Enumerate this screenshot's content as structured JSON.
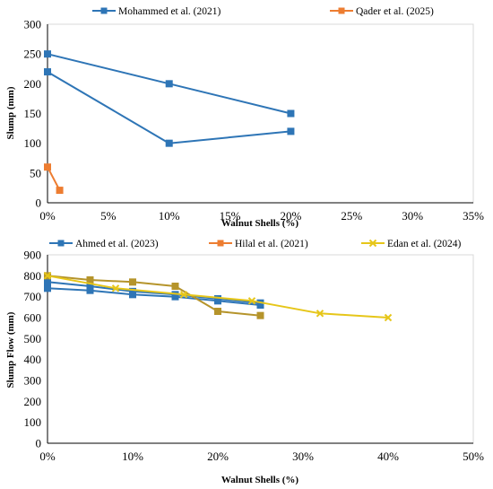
{
  "chart_data": [
    {
      "type": "line",
      "xlabel": "Walnut Shells (%)",
      "ylabel": "Slump (mm)",
      "xlim": [
        0,
        35
      ],
      "ylim": [
        0,
        300
      ],
      "x_ticks": [
        "0%",
        "5%",
        "10%",
        "15%",
        "20%",
        "25%",
        "30%",
        "35%"
      ],
      "y_ticks": [
        "0",
        "50",
        "100",
        "150",
        "200",
        "250",
        "300"
      ],
      "grid": false,
      "legend_position": "top",
      "series": [
        {
          "name": "Mohammed et al. (2021)",
          "color": "#2e75b6",
          "marker": "square",
          "lines": [
            {
              "x": [
                0,
                10,
                20
              ],
              "y": [
                250,
                200,
                150
              ]
            },
            {
              "x": [
                0,
                10,
                20
              ],
              "y": [
                220,
                100,
                120
              ]
            }
          ]
        },
        {
          "name": "Qader et al. (2025)",
          "color": "#ed7d31",
          "marker": "square",
          "lines": [
            {
              "x": [
                0,
                1
              ],
              "y": [
                60,
                21
              ]
            }
          ]
        }
      ]
    },
    {
      "type": "line",
      "xlabel": "Walnut Shells (%)",
      "ylabel": "Slump Flow (mm)",
      "xlim": [
        0,
        50
      ],
      "ylim": [
        0,
        900
      ],
      "x_ticks": [
        "0%",
        "10%",
        "20%",
        "30%",
        "40%",
        "50%"
      ],
      "y_ticks": [
        "0",
        "100",
        "200",
        "300",
        "400",
        "500",
        "600",
        "700",
        "800",
        "900"
      ],
      "grid": false,
      "legend_position": "top",
      "series": [
        {
          "name": "Ahmed et al. (2023)",
          "color": "#2e75b6",
          "marker": "square",
          "lines": [
            {
              "x": [
                0,
                5,
                10,
                15,
                20,
                25
              ],
              "y": [
                740,
                730,
                710,
                700,
                680,
                660
              ]
            },
            {
              "x": [
                0,
                5,
                10,
                15,
                20,
                25
              ],
              "y": [
                770,
                750,
                725,
                710,
                690,
                670
              ]
            }
          ]
        },
        {
          "name": "Hilal et al. (2021)",
          "color": "#b5942b",
          "marker": "square",
          "lines": [
            {
              "x": [
                0,
                5,
                10,
                15,
                20,
                25
              ],
              "y": [
                800,
                780,
                770,
                750,
                630,
                610
              ]
            }
          ]
        },
        {
          "name": "Edan et al. (2024)",
          "color": "#e6c619",
          "marker": "x",
          "lines": [
            {
              "x": [
                0,
                8,
                16,
                24,
                32,
                40
              ],
              "y": [
                800,
                740,
                710,
                680,
                620,
                600
              ]
            }
          ]
        }
      ]
    }
  ]
}
